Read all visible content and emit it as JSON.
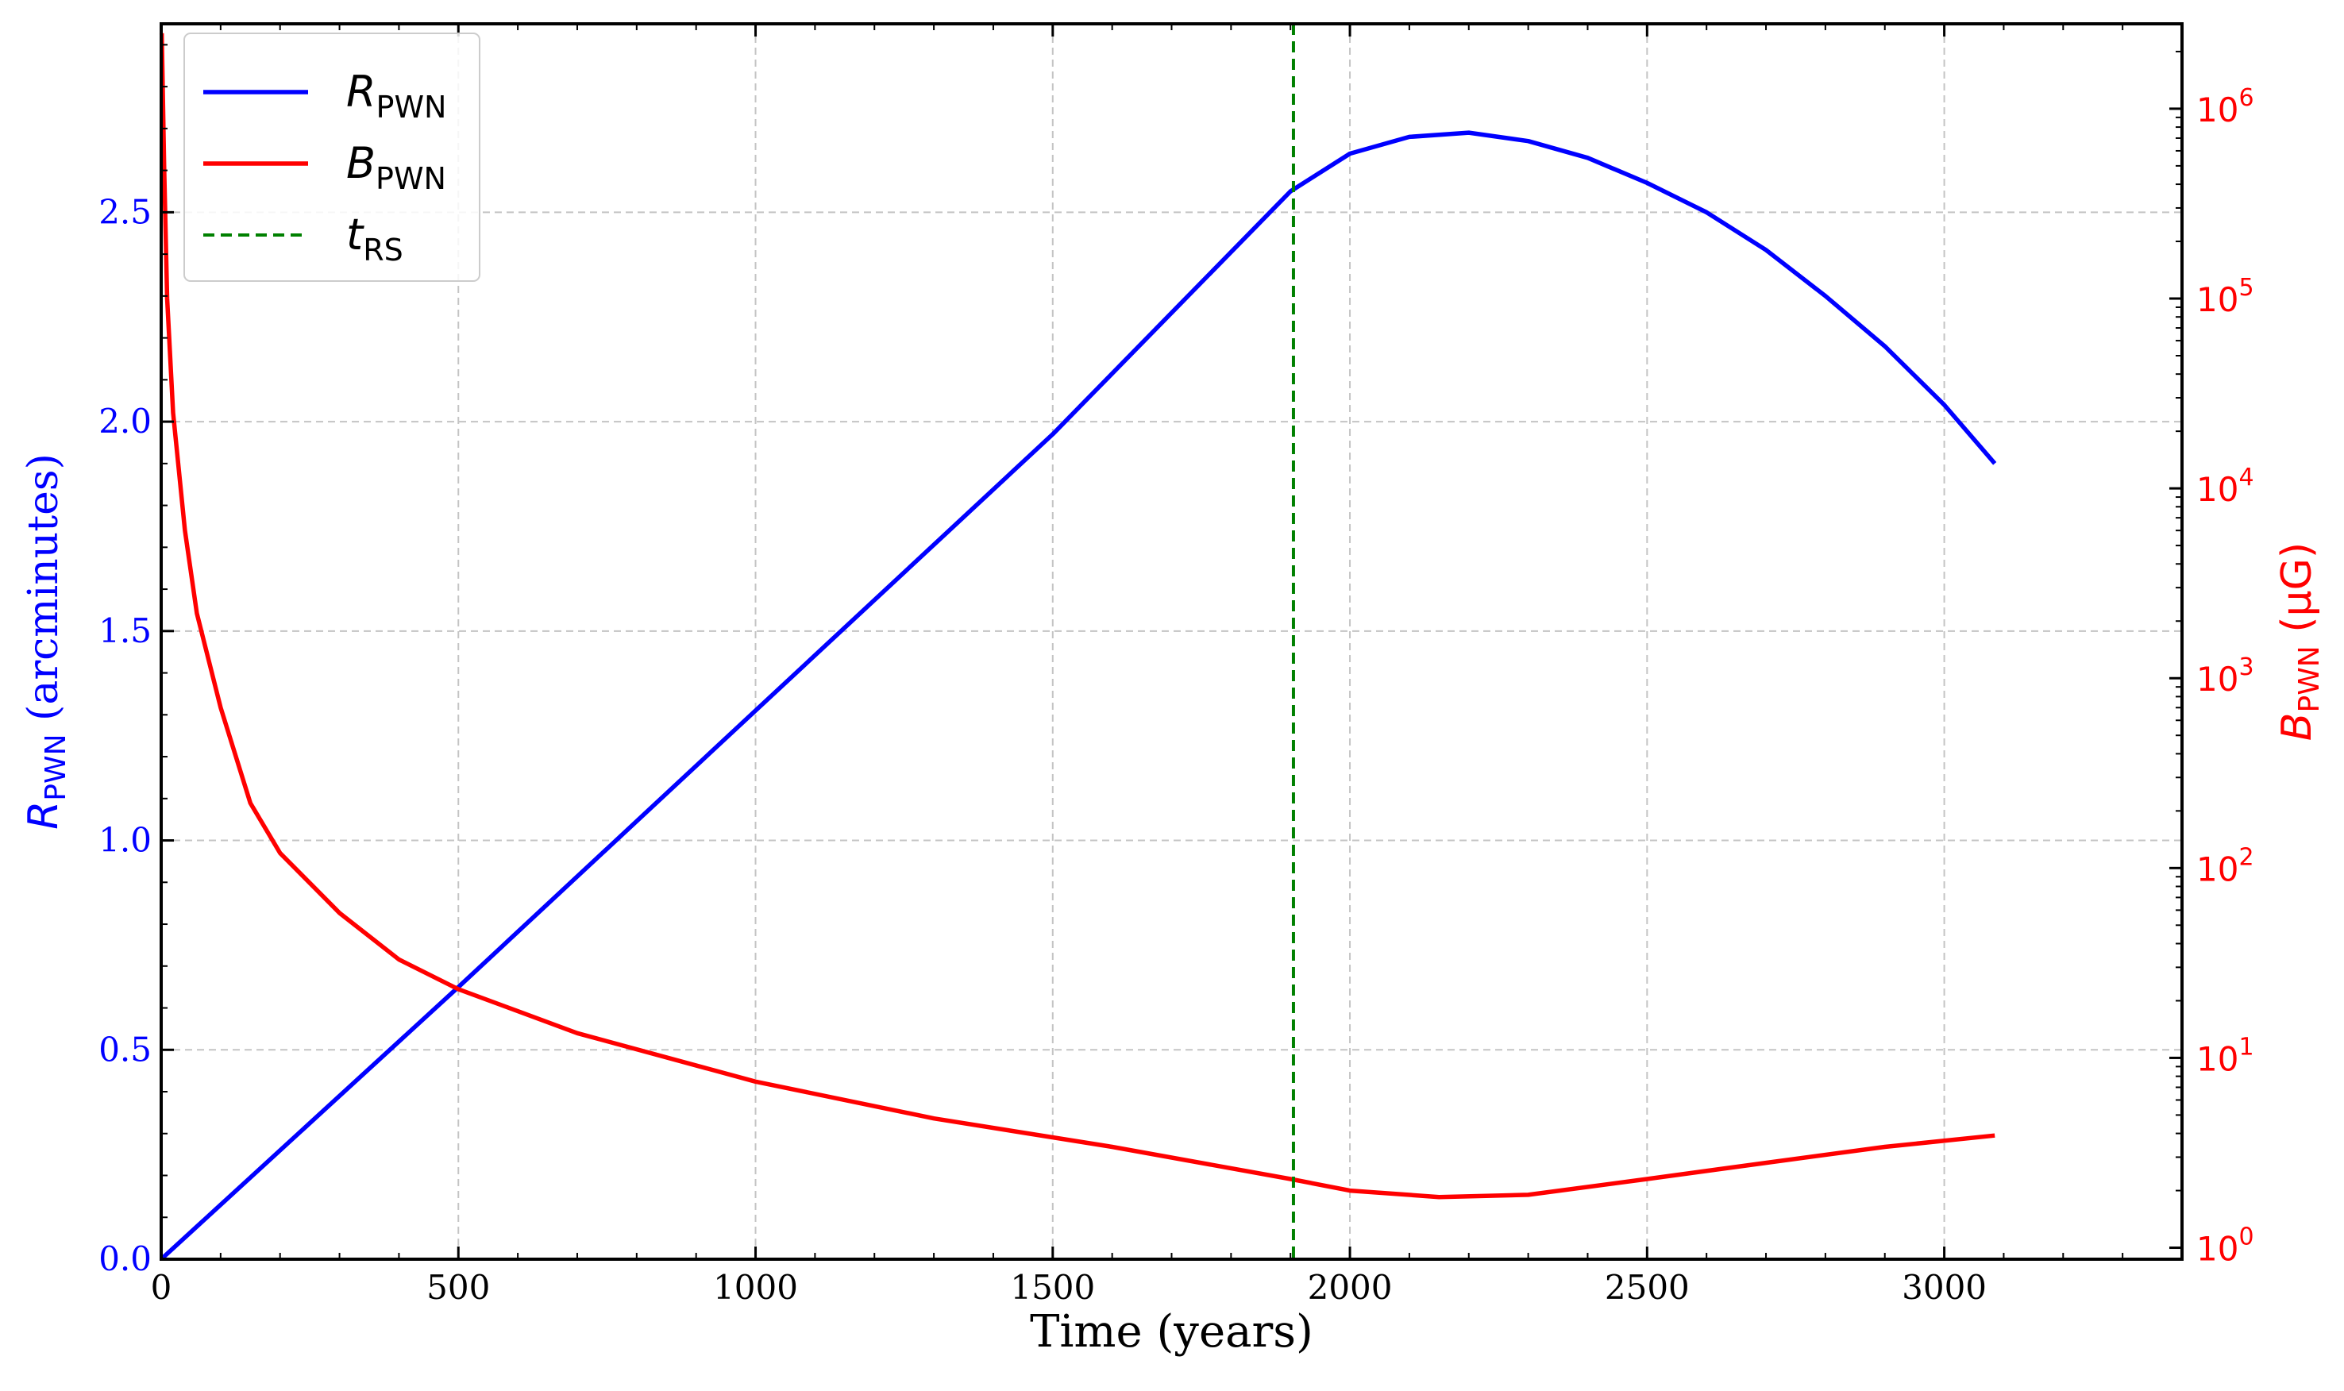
{
  "chart_data": {
    "type": "line",
    "xlabel": "Time (years)",
    "ylabel_left": {
      "main": "R",
      "sub": "PWN",
      "rest": " (arcminutes)"
    },
    "ylabel_right": {
      "main": "B",
      "sub": "PWN",
      "rest": " (μG)"
    },
    "xlim": [
      0,
      3400
    ],
    "ylim_left": [
      0,
      2.95
    ],
    "ylim_right": [
      0.87,
      2800000
    ],
    "right_axis_scale": "log",
    "grid": true,
    "legend_position": "top-left",
    "x_ticks": [
      0,
      500,
      1000,
      1500,
      2000,
      2500,
      3000
    ],
    "y_left_ticks": [
      "0.0",
      "0.5",
      "1.0",
      "1.5",
      "2.0",
      "2.5"
    ],
    "y_right_ticks": [
      {
        "base": "10",
        "exp": "0",
        "value": 1
      },
      {
        "base": "10",
        "exp": "1",
        "value": 10
      },
      {
        "base": "10",
        "exp": "2",
        "value": 100
      },
      {
        "base": "10",
        "exp": "3",
        "value": 1000
      },
      {
        "base": "10",
        "exp": "4",
        "value": 10000
      },
      {
        "base": "10",
        "exp": "5",
        "value": 100000
      },
      {
        "base": "10",
        "exp": "6",
        "value": 1000000
      }
    ],
    "series": [
      {
        "name": {
          "main": "R",
          "sub": "PWN"
        },
        "axis": "left",
        "color": "#0000ff",
        "x": [
          0,
          500,
          1000,
          1500,
          1900,
          2000,
          2100,
          2200,
          2300,
          2400,
          2500,
          2600,
          2700,
          2800,
          2900,
          3000,
          3085
        ],
        "y": [
          0.0,
          0.65,
          1.31,
          1.97,
          2.55,
          2.64,
          2.68,
          2.69,
          2.67,
          2.63,
          2.57,
          2.5,
          2.41,
          2.3,
          2.18,
          2.04,
          1.9
        ]
      },
      {
        "name": {
          "main": "B",
          "sub": "PWN"
        },
        "axis": "right",
        "color": "#ff0000",
        "x": [
          1,
          5,
          10,
          20,
          40,
          60,
          100,
          150,
          200,
          300,
          400,
          500,
          700,
          1000,
          1300,
          1600,
          1900,
          2000,
          2150,
          2300,
          2500,
          2700,
          2900,
          3085
        ],
        "y": [
          2500000,
          500000,
          100000,
          25000,
          6000,
          2200,
          700,
          220,
          120,
          58,
          33,
          23,
          13.5,
          7.5,
          4.8,
          3.4,
          2.3,
          2.0,
          1.85,
          1.9,
          2.3,
          2.8,
          3.4,
          3.9
        ]
      },
      {
        "name": {
          "main": "t",
          "sub": "RS"
        },
        "axis": "left",
        "color": "#008000",
        "style": "dashed",
        "x_value": 1905
      }
    ]
  }
}
